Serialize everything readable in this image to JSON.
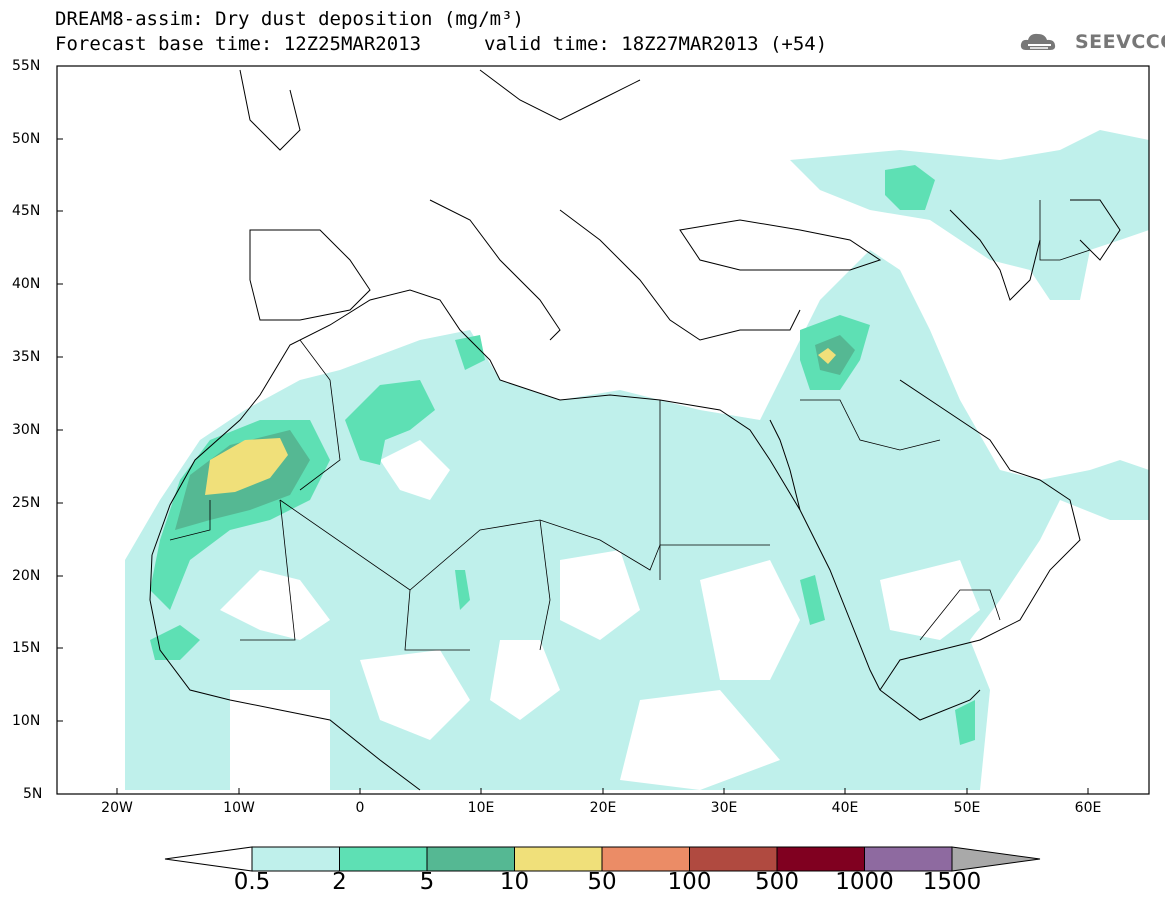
{
  "header": {
    "title_line1": "DREAM8-assim: Dry dust deposition (mg/m³)",
    "title_line2": "Forecast base time: 12Z25MAR2013",
    "valid_time": "valid time: 18Z27MAR2013 (+54)",
    "logo_text": "SEEVCCC",
    "logo_icon": "cloud-logo-icon"
  },
  "map": {
    "lat_labels": [
      "55N",
      "50N",
      "45N",
      "40N",
      "35N",
      "30N",
      "25N",
      "20N",
      "15N",
      "10N",
      "5N"
    ],
    "lon_labels": [
      "20W",
      "10W",
      "0",
      "10E",
      "20E",
      "30E",
      "40E",
      "50E",
      "60E"
    ],
    "lat_range": [
      5,
      55
    ],
    "lon_range": [
      -25,
      65
    ]
  },
  "legend": {
    "labels": [
      "0.5",
      "2",
      "5",
      "10",
      "50",
      "100",
      "500",
      "1000",
      "1500"
    ],
    "colors": [
      "#ffffff",
      "#bff0eb",
      "#5ee0b4",
      "#55b893",
      "#f0e07a",
      "#eb8c66",
      "#b04a40",
      "#800020",
      "#8e6aa0",
      "#a9a9a9"
    ]
  }
}
